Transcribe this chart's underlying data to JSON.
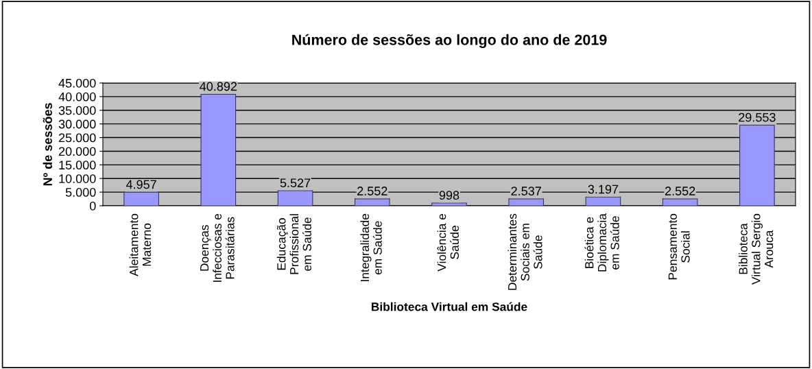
{
  "chart_data": {
    "type": "bar",
    "title": "Número de sessões ao longo do ano de 2019",
    "xlabel": "Biblioteca Virtual em Saúde",
    "ylabel": "Nº de sessões",
    "categories": [
      "Aleitamento\nMaterno",
      "Doenças\nInfecciosas e\nParasitárias",
      "Educação\nProfissional\nem Saúde",
      "Integralidade\nem Saúde",
      "Violência e\nSaúde",
      "Determinantes\nSociais em\nSaúde",
      "Bioética e\nDiplomacia\nem Saúde",
      "Pensamento\nSocial",
      "Biblioteca\nVirtual Sergio\nArouca"
    ],
    "values": [
      4957,
      40892,
      5527,
      2552,
      998,
      2537,
      3197,
      2552,
      29553
    ],
    "value_labels": [
      "4.957",
      "40.892",
      "5.527",
      "2.552",
      "998",
      "2.537",
      "3.197",
      "2.552",
      "29.553"
    ],
    "color": "#9999ff",
    "ylim": [
      0,
      45000
    ],
    "yticks": [
      {
        "value": 0,
        "label": "0"
      },
      {
        "value": 5000,
        "label": "5.000"
      },
      {
        "value": 10000,
        "label": "10.000"
      },
      {
        "value": 15000,
        "label": "15.000"
      },
      {
        "value": 20000,
        "label": "20.000"
      },
      {
        "value": 25000,
        "label": "25.000"
      },
      {
        "value": 30000,
        "label": "30.000"
      },
      {
        "value": 35000,
        "label": "35.000"
      },
      {
        "value": 40000,
        "label": "40.000"
      },
      {
        "value": 45000,
        "label": "45.000"
      }
    ],
    "grid": "y",
    "legend": false
  }
}
